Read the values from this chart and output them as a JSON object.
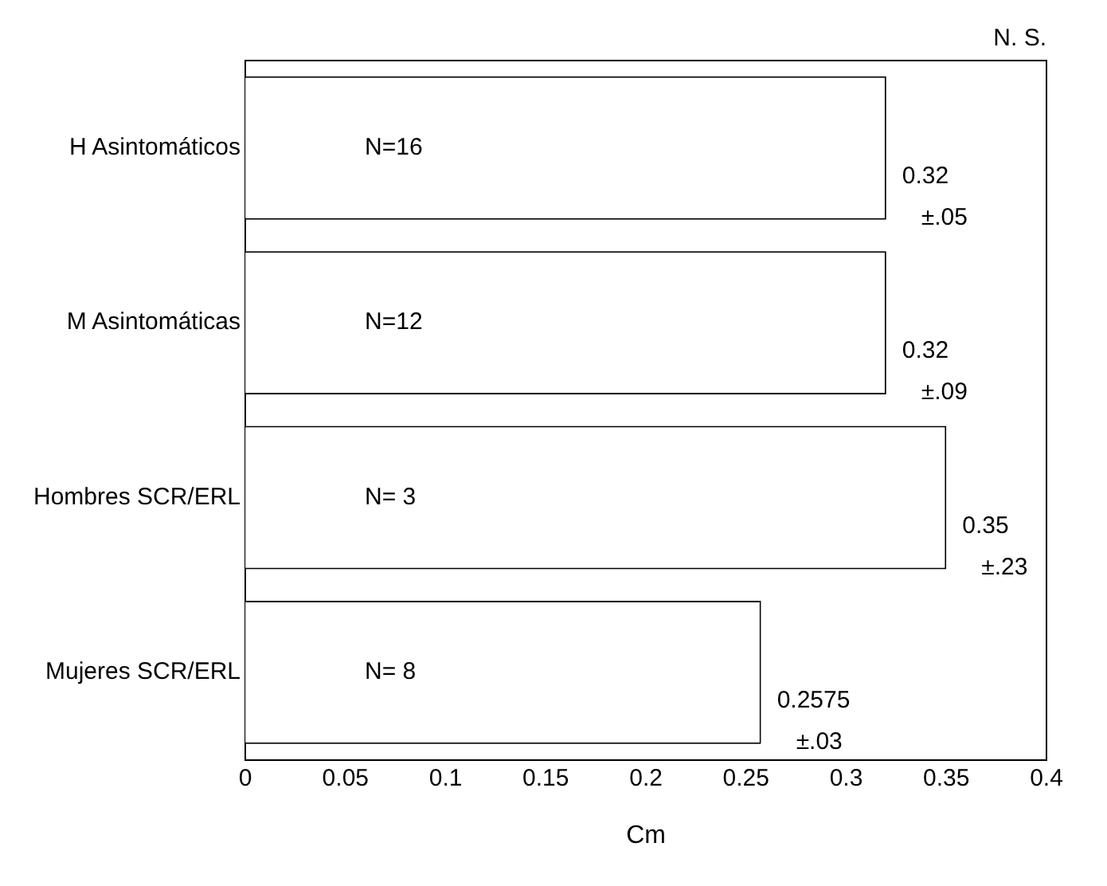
{
  "chart_data": {
    "type": "bar",
    "orientation": "horizontal",
    "xlabel": "Cm",
    "categories": [
      "H Asintomáticos",
      "M Asintomáticas",
      "Hombres SCR/ERL",
      "Mujeres SCR/ERL"
    ],
    "values": [
      0.32,
      0.32,
      0.35,
      0.2575
    ],
    "color": "#ffffff",
    "value_labels": [
      "0.32 ±.05",
      "0.32 ±.09",
      "0.35 ±.23",
      "0.2575 ±.03"
    ],
    "xlim": [
      0,
      0.4
    ],
    "xticks": [
      0,
      0.05,
      0.1,
      0.15,
      0.2,
      0.25,
      0.3,
      0.35,
      0.4
    ],
    "annotations": [
      "N. S.",
      {
        "text": "N=16",
        "y": "H Asintomáticos"
      },
      {
        "text": "N=12",
        "y": "M Asintomáticas"
      },
      {
        "text": "N= 3",
        "y": "Hombres SCR/ERL"
      },
      {
        "text": "N= 8",
        "y": "Mujeres SCR/ERL"
      }
    ],
    "grid": false,
    "legend": false
  }
}
